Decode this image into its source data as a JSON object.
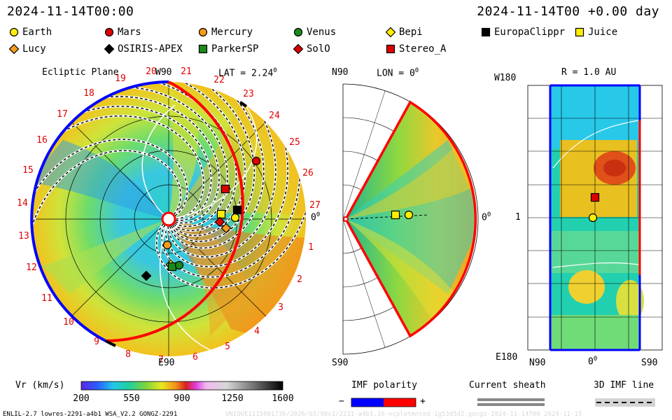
{
  "header": {
    "left_time": "2024-11-14T00:00",
    "right_time": "2024-11-14T00 +0.00 day"
  },
  "legend": [
    {
      "label": "Earth",
      "color": "#ffee00",
      "shape": "circle"
    },
    {
      "label": "Mars",
      "color": "#dd0000",
      "shape": "circle"
    },
    {
      "label": "Mercury",
      "color": "#f59a1a",
      "shape": "circle"
    },
    {
      "label": "Venus",
      "color": "#1a8a1a",
      "shape": "circle"
    },
    {
      "label": "Bepi",
      "color": "#ffee00",
      "shape": "diamond"
    },
    {
      "label": "EuropaClippr",
      "color": "#000000",
      "shape": "square"
    },
    {
      "label": "Juice",
      "color": "#ffee00",
      "shape": "square"
    },
    {
      "label": "Lucy",
      "color": "#f59a1a",
      "shape": "diamond"
    },
    {
      "label": "OSIRIS-APEX",
      "color": "#000000",
      "shape": "diamond"
    },
    {
      "label": "ParkerSP",
      "color": "#1a8a1a",
      "shape": "square"
    },
    {
      "label": "SolO",
      "color": "#dd0000",
      "shape": "diamond"
    },
    {
      "label": "Stereo_A",
      "color": "#dd0000",
      "shape": "square"
    }
  ],
  "ecliptic": {
    "title": "Ecliptic Plane",
    "w90": "W90",
    "lat": "LAT = 2.24",
    "lat_deg": "0",
    "e90": "E90",
    "zero": "0",
    "zero_deg": "0",
    "carrington": [
      "1",
      "2",
      "3",
      "4",
      "5",
      "6",
      "7",
      "8",
      "9",
      "10",
      "11",
      "12",
      "13",
      "14",
      "15",
      "16",
      "17",
      "18",
      "19",
      "20",
      "21",
      "22",
      "23",
      "24",
      "25",
      "26",
      "27"
    ]
  },
  "meridional": {
    "n90": "N90",
    "lon": "LON = 0",
    "lon_deg": "0",
    "s90": "S90",
    "zero": "0",
    "zero_deg": "0"
  },
  "synoptic": {
    "w180": "W180",
    "r": "R = 1.0 AU",
    "one": "1",
    "e180": "E180",
    "n90": "N90",
    "zero": "0",
    "zero_deg": "0",
    "s90": "S90"
  },
  "colorbar": {
    "label": "Vr (km/s)",
    "ticks": [
      "200",
      "550",
      "900",
      "1250",
      "1600"
    ]
  },
  "imf": {
    "label": "IMF polarity",
    "minus": "−",
    "plus": "+",
    "neg_color": "#0000ff",
    "pos_color": "#ff0000"
  },
  "current_sheath": {
    "label": "Current sheath"
  },
  "imf_line": {
    "label": "3D IMF line"
  },
  "footer": {
    "left": "ENLIL-2.7 lowres-2291-a4b1 WSA_V2.2 GONGZ-2291",
    "right": "UNIQUE1115001736/2026/03/90x1/2231-a4b1.16-ncplotmnted-1g53d5d2.gongz-2024-11-14T00 2024-11-15"
  }
}
